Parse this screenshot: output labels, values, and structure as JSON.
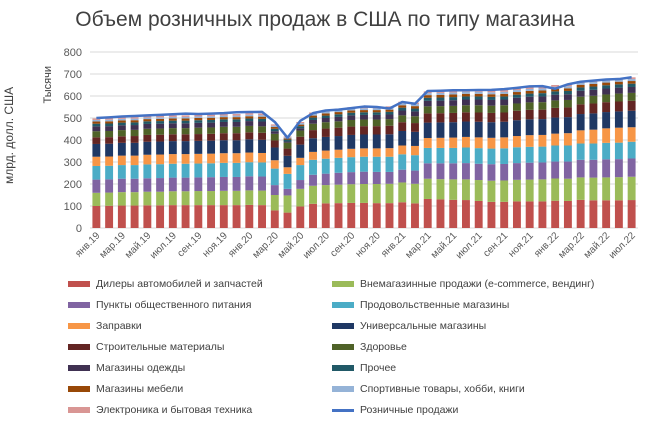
{
  "chart_data": {
    "type": "bar",
    "title": "Объем розничных продаж в США по типу магазина",
    "ylabel": "млрд. долл. США",
    "unit_label": "Тысячи",
    "ylim": [
      0,
      800
    ],
    "yticks": [
      0,
      100,
      200,
      300,
      400,
      500,
      600,
      700,
      800
    ],
    "grid": true,
    "legend_position": "bottom",
    "categories": [
      "янв.19",
      "фев.19",
      "мар.19",
      "апр.19",
      "май.19",
      "июн.19",
      "июл.19",
      "авг.19",
      "сен.19",
      "окт.19",
      "ноя.19",
      "дек.19",
      "янв.20",
      "фев.20",
      "мар.20",
      "апр.20",
      "май.20",
      "июн.20",
      "июл.20",
      "авг.20",
      "сен.20",
      "окт.20",
      "ноя.20",
      "дек.20",
      "янв.21",
      "фев.21",
      "мар.21",
      "апр.21",
      "май.21",
      "июн.21",
      "июл.21",
      "авг.21",
      "сен.21",
      "окт.21",
      "ноя.21",
      "дек.21",
      "янв.22",
      "фев.22",
      "мар.22",
      "апр.22",
      "май.22",
      "июн.22",
      "июл.22"
    ],
    "tick_labels": [
      "янв.19",
      "мар.19",
      "май.19",
      "июл.19",
      "сен.19",
      "ноя.19",
      "янв.20",
      "мар.20",
      "май.20",
      "июл.20",
      "сен.20",
      "ноя.20",
      "янв.21",
      "мар.21",
      "май.21",
      "июл.21",
      "сен.21",
      "ноя.21",
      "янв.22",
      "мар.22",
      "май.22",
      "июл.22"
    ],
    "series": [
      {
        "name": "Дилеры автомобилей и запчастей",
        "color": "#C0504D",
        "values": [
          100,
          101,
          102,
          102,
          103,
          103,
          104,
          104,
          104,
          104,
          104,
          104,
          105,
          104,
          80,
          70,
          98,
          110,
          112,
          113,
          114,
          114,
          113,
          113,
          117,
          112,
          132,
          130,
          128,
          127,
          123,
          119,
          119,
          121,
          121,
          121,
          124,
          123,
          128,
          126,
          126,
          126,
          127
        ]
      },
      {
        "name": "Внемагазинные продажи (e-commerce, вендинг)",
        "color": "#9BBB59",
        "values": [
          60,
          60,
          61,
          61,
          62,
          62,
          63,
          63,
          64,
          64,
          65,
          65,
          66,
          66,
          70,
          78,
          80,
          82,
          83,
          84,
          85,
          86,
          87,
          88,
          90,
          89,
          92,
          92,
          93,
          94,
          95,
          96,
          97,
          98,
          99,
          100,
          101,
          101,
          102,
          103,
          104,
          105,
          106
        ]
      },
      {
        "name": "Пункты общественного питания",
        "color": "#8064A2",
        "values": [
          60,
          60,
          61,
          61,
          61,
          62,
          62,
          62,
          62,
          63,
          63,
          63,
          64,
          64,
          45,
          30,
          40,
          50,
          52,
          54,
          55,
          56,
          55,
          54,
          58,
          60,
          70,
          72,
          73,
          74,
          74,
          75,
          75,
          76,
          77,
          77,
          77,
          78,
          80,
          81,
          82,
          82,
          83
        ]
      },
      {
        "name": "Продовольственные магазины",
        "color": "#4BACC6",
        "values": [
          62,
          62,
          62,
          62,
          63,
          63,
          63,
          63,
          63,
          63,
          64,
          64,
          64,
          64,
          75,
          68,
          68,
          68,
          68,
          68,
          68,
          68,
          69,
          69,
          70,
          70,
          70,
          70,
          70,
          71,
          71,
          71,
          71,
          72,
          72,
          72,
          73,
          73,
          74,
          74,
          75,
          75,
          76
        ]
      },
      {
        "name": "Заправки",
        "color": "#F79646",
        "values": [
          42,
          42,
          43,
          43,
          44,
          44,
          44,
          44,
          44,
          44,
          44,
          44,
          44,
          43,
          38,
          30,
          33,
          36,
          37,
          37,
          38,
          38,
          38,
          39,
          40,
          42,
          45,
          46,
          47,
          48,
          49,
          49,
          50,
          51,
          53,
          53,
          54,
          56,
          60,
          63,
          66,
          68,
          66
        ]
      },
      {
        "name": "Универсальные магазины",
        "color": "#1F3864",
        "values": [
          58,
          58,
          58,
          58,
          59,
          59,
          59,
          59,
          59,
          59,
          59,
          59,
          60,
          60,
          58,
          52,
          60,
          62,
          62,
          62,
          63,
          63,
          63,
          63,
          66,
          64,
          70,
          70,
          70,
          70,
          71,
          71,
          71,
          72,
          72,
          72,
          73,
          73,
          74,
          74,
          74,
          74,
          75
        ]
      },
      {
        "name": "Строительные материалы",
        "color": "#632523",
        "values": [
          30,
          30,
          30,
          31,
          31,
          31,
          31,
          31,
          31,
          31,
          32,
          32,
          32,
          32,
          32,
          33,
          36,
          37,
          38,
          38,
          38,
          38,
          38,
          39,
          40,
          40,
          42,
          42,
          42,
          42,
          42,
          42,
          42,
          43,
          43,
          43,
          44,
          44,
          44,
          45,
          45,
          45,
          45
        ]
      },
      {
        "name": "Здоровье",
        "color": "#4F6228",
        "values": [
          28,
          28,
          28,
          28,
          28,
          28,
          28,
          28,
          29,
          29,
          29,
          29,
          29,
          29,
          30,
          27,
          28,
          29,
          29,
          29,
          30,
          30,
          30,
          30,
          31,
          31,
          32,
          32,
          32,
          32,
          33,
          33,
          33,
          33,
          34,
          34,
          34,
          34,
          35,
          35,
          35,
          36,
          36
        ]
      },
      {
        "name": "Магазины одежды",
        "color": "#403152",
        "values": [
          22,
          22,
          22,
          22,
          22,
          22,
          22,
          22,
          22,
          22,
          22,
          22,
          22,
          22,
          12,
          5,
          10,
          17,
          19,
          20,
          21,
          21,
          21,
          21,
          22,
          22,
          25,
          25,
          26,
          26,
          26,
          26,
          26,
          26,
          26,
          26,
          26,
          26,
          27,
          27,
          27,
          27,
          27
        ]
      },
      {
        "name": "Прочее",
        "color": "#215967",
        "values": [
          12,
          12,
          12,
          12,
          12,
          12,
          12,
          12,
          12,
          12,
          12,
          12,
          12,
          12,
          11,
          9,
          10,
          11,
          11,
          12,
          12,
          12,
          12,
          12,
          13,
          13,
          14,
          14,
          14,
          14,
          14,
          14,
          14,
          14,
          14,
          15,
          15,
          15,
          15,
          15,
          15,
          15,
          15
        ]
      },
      {
        "name": "Магазины мебели",
        "color": "#984807",
        "values": [
          10,
          10,
          10,
          10,
          10,
          10,
          10,
          10,
          10,
          10,
          10,
          10,
          10,
          10,
          8,
          5,
          7,
          9,
          10,
          10,
          10,
          10,
          10,
          10,
          11,
          11,
          12,
          12,
          12,
          12,
          12,
          12,
          12,
          12,
          12,
          12,
          12,
          12,
          12,
          12,
          12,
          12,
          12
        ]
      },
      {
        "name": "Спортивные товары, хобби, книги",
        "color": "#95B3D7",
        "values": [
          7,
          7,
          7,
          7,
          7,
          7,
          7,
          7,
          7,
          7,
          7,
          7,
          7,
          7,
          6,
          5,
          7,
          8,
          8,
          8,
          8,
          8,
          8,
          8,
          9,
          9,
          9,
          9,
          9,
          9,
          9,
          9,
          9,
          9,
          9,
          9,
          9,
          9,
          9,
          9,
          9,
          9,
          9
        ]
      },
      {
        "name": "Электроника и бытовая техника",
        "color": "#D99694",
        "values": [
          7,
          7,
          7,
          7,
          7,
          7,
          7,
          7,
          7,
          7,
          7,
          7,
          7,
          7,
          6,
          4,
          5,
          6,
          7,
          7,
          7,
          7,
          7,
          7,
          7,
          7,
          8,
          8,
          8,
          8,
          8,
          8,
          8,
          8,
          8,
          8,
          8,
          8,
          8,
          8,
          8,
          8,
          8
        ]
      }
    ],
    "line": {
      "name": "Розничные продажи",
      "color": "#4472C4",
      "values": [
        500,
        503,
        507,
        509,
        512,
        514,
        517,
        520,
        518,
        520,
        522,
        526,
        527,
        528,
        482,
        410,
        487,
        522,
        534,
        538,
        545,
        552,
        550,
        543,
        573,
        565,
        623,
        624,
        626,
        626,
        627,
        628,
        631,
        637,
        644,
        645,
        633,
        653,
        665,
        670,
        675,
        677,
        685
      ]
    }
  }
}
